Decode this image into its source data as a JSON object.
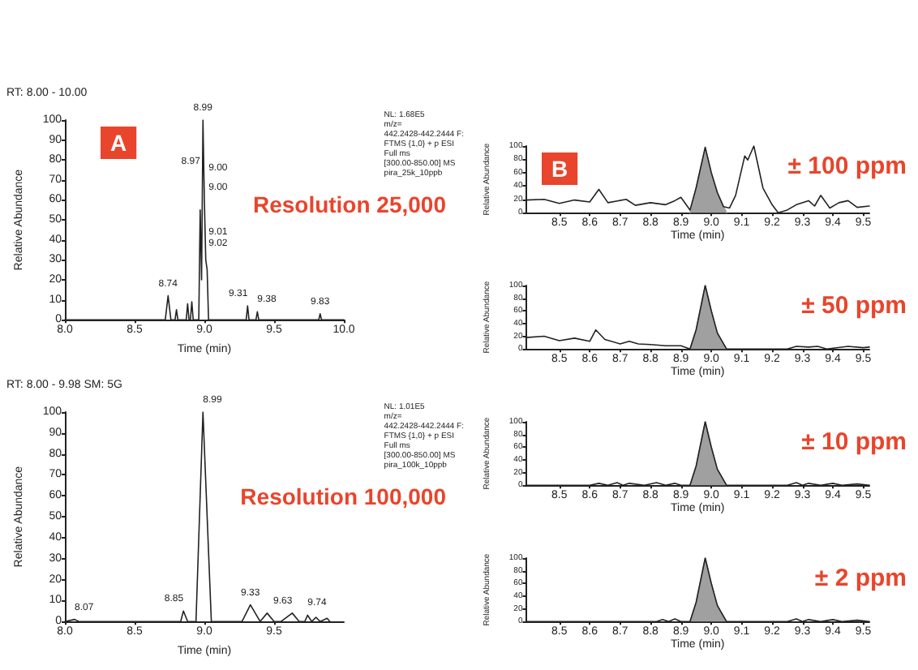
{
  "chart_data": [
    {
      "type": "line",
      "title": "Resolution 25,000",
      "subtitle": "A",
      "xlabel": "Time (min)",
      "ylabel": "Relative Abundance",
      "xlim": [
        8,
        10
      ],
      "xticks": [
        {
          "value": 8,
          "label": "8.0"
        },
        {
          "value": 8.5,
          "label": "8.5"
        },
        {
          "value": 9,
          "label": "9.0"
        },
        {
          "value": 9.5,
          "label": "9.5"
        },
        {
          "value": 10,
          "label": "10.0"
        }
      ],
      "ylim": [
        0,
        100
      ],
      "yticks": [
        0,
        10,
        20,
        30,
        40,
        50,
        60,
        70,
        80,
        90,
        100
      ],
      "series": [
        {
          "color": "#222222",
          "x": [
            8,
            8.72,
            8.74,
            8.76,
            8.79,
            8.8,
            8.81,
            8.87,
            8.88,
            8.89,
            8.9,
            8.91,
            8.92,
            8.96,
            8.97,
            8.98,
            8.99,
            9,
            9.01,
            9.02,
            9.03,
            9.3,
            9.31,
            9.32,
            9.37,
            9.38,
            9.39,
            9.82,
            9.83,
            9.84,
            10
          ],
          "values": [
            0,
            0,
            12,
            0,
            0,
            5,
            0,
            0,
            8,
            0,
            0,
            9,
            0,
            0,
            55,
            20,
            100,
            60,
            30,
            25,
            0,
            0,
            7,
            0,
            0,
            4,
            0,
            0,
            3,
            0,
            0
          ]
        }
      ],
      "annotations": [
        "RT: 8.00 - 10.00",
        "NL: 1.68E5\nm/z=\n442.2428-442.2444 F:\nFTMS {1,0} + p ESI\nFull ms\n[300.00-850.00] MS\npira_25k_10ppb",
        {
          "text": "8.99",
          "x": 8.99,
          "y": 100
        },
        {
          "text": "8.97",
          "x": 8.97,
          "y": 73
        },
        {
          "text": "9.00",
          "x": 9.03,
          "y": 70
        },
        {
          "text": "9.00",
          "x": 9.03,
          "y": 60
        },
        {
          "text": "9.01",
          "x": 9.03,
          "y": 38
        },
        {
          "text": "9.02",
          "x": 9.03,
          "y": 32
        },
        {
          "text": "8.74",
          "x": 8.74,
          "y": 12
        },
        {
          "text": "9.31",
          "x": 9.31,
          "y": 7
        },
        {
          "text": "9.38",
          "x": 9.38,
          "y": 4
        },
        {
          "text": "9.83",
          "x": 9.83,
          "y": 3
        }
      ]
    },
    {
      "type": "line",
      "title": "Resolution 100,000",
      "xlabel": "Time (min)",
      "ylabel": "Relative Abundance",
      "xlim": [
        8,
        10
      ],
      "xticks": [
        {
          "value": 8,
          "label": "8.0"
        },
        {
          "value": 8.5,
          "label": "8.5"
        },
        {
          "value": 9,
          "label": "9.0"
        },
        {
          "value": 9.5,
          "label": "9.5"
        }
      ],
      "ylim": [
        0,
        100
      ],
      "yticks": [
        0,
        10,
        20,
        30,
        40,
        50,
        60,
        70,
        80,
        90,
        100
      ],
      "series": [
        {
          "color": "#222222",
          "x": [
            8,
            8.07,
            8.1,
            8.83,
            8.85,
            8.88,
            8.94,
            8.99,
            9.05,
            9.27,
            9.33,
            9.4,
            9.45,
            9.5,
            9.55,
            9.63,
            9.68,
            9.72,
            9.74,
            9.77,
            9.8,
            9.83,
            9.88,
            9.9
          ],
          "values": [
            0,
            1,
            0,
            0,
            5,
            0,
            0,
            100,
            0,
            0,
            8,
            0,
            4,
            0,
            0,
            4,
            0,
            0,
            3,
            0,
            2,
            0,
            1.5,
            0
          ]
        }
      ],
      "annotations": [
        "RT: 8.00 - 9.98 SM: 5G",
        "NL: 1.01E5\nm/z=\n442.2428-442.2444 F:\nFTMS {1,0} + p ESI\nFull ms\n[300.00-850.00] MS\npira_100k_10ppb",
        {
          "text": "8.99",
          "x": 8.99,
          "y": 100
        },
        {
          "text": "8.07",
          "x": 8.07,
          "y": 1
        },
        {
          "text": "8.85",
          "x": 8.85,
          "y": 5
        },
        {
          "text": "9.33",
          "x": 9.33,
          "y": 8
        },
        {
          "text": "9.63",
          "x": 9.63,
          "y": 4
        },
        {
          "text": "9.74",
          "x": 9.74,
          "y": 3
        }
      ]
    },
    {
      "type": "line",
      "title": "± 100 ppm",
      "subtitle": "B",
      "xlabel": "Time (min)",
      "ylabel": "Relative Abundance",
      "xlim": [
        8.39,
        9.52
      ],
      "xticks": [
        8.5,
        8.6,
        8.7,
        8.8,
        8.9,
        {
          "value": 9,
          "label": "9.0"
        },
        9.1,
        9.2,
        9.3,
        9.4,
        9.5
      ],
      "ylim": [
        0,
        100
      ],
      "yticks": [
        0,
        20,
        40,
        60,
        80,
        100
      ],
      "series": [
        {
          "color": "#222222",
          "x": [
            8.39,
            8.45,
            8.5,
            8.55,
            8.6,
            8.63,
            8.66,
            8.72,
            8.75,
            8.8,
            8.85,
            8.88,
            8.9,
            8.93,
            8.95,
            8.98,
            9,
            9.02,
            9.04,
            9.06,
            9.08,
            9.11,
            9.12,
            9.14,
            9.17,
            9.2,
            9.22,
            9.25,
            9.28,
            9.32,
            9.34,
            9.36,
            9.39,
            9.42,
            9.45,
            9.48,
            9.52
          ],
          "values": [
            19,
            20,
            14,
            19,
            16,
            35,
            15,
            20,
            11,
            15,
            12,
            18,
            23,
            4,
            37,
            98,
            60,
            30,
            9,
            7,
            26,
            85,
            79,
            100,
            37,
            12,
            0,
            4,
            12,
            18,
            10,
            26,
            7,
            15,
            18,
            8,
            10
          ]
        },
        {
          "type": "area",
          "color": "#a0a0a0",
          "x": [
            8.93,
            8.95,
            8.98,
            9,
            9.02,
            9.05
          ],
          "values": [
            0,
            37,
            98,
            60,
            30,
            0
          ]
        }
      ]
    },
    {
      "type": "line",
      "title": "± 50 ppm",
      "xlabel": "Time (min)",
      "ylabel": "Relative Abundance",
      "xlim": [
        8.39,
        9.52
      ],
      "xticks": [
        8.5,
        8.6,
        8.7,
        8.8,
        8.9,
        {
          "value": 9,
          "label": "9.0"
        },
        9.1,
        9.2,
        9.3,
        9.4,
        9.5
      ],
      "ylim": [
        0,
        100
      ],
      "yticks": [
        0,
        20,
        40,
        60,
        80,
        100
      ],
      "series": [
        {
          "color": "#222222",
          "x": [
            8.39,
            8.45,
            8.5,
            8.55,
            8.6,
            8.62,
            8.65,
            8.7,
            8.73,
            8.76,
            8.8,
            8.85,
            8.9,
            8.93,
            8.95,
            8.98,
            9,
            9.02,
            9.05,
            9.25,
            9.28,
            9.32,
            9.35,
            9.38,
            9.45,
            9.5,
            9.52
          ],
          "values": [
            18,
            20,
            13,
            17,
            12,
            30,
            15,
            8,
            12,
            8,
            7,
            5,
            5,
            0,
            30,
            100,
            60,
            25,
            0,
            0,
            4,
            3,
            4,
            0,
            4,
            2,
            3
          ]
        },
        {
          "type": "area",
          "color": "#a0a0a0",
          "x": [
            8.93,
            8.95,
            8.98,
            9,
            9.02,
            9.05
          ],
          "values": [
            0,
            30,
            100,
            60,
            25,
            0
          ]
        }
      ]
    },
    {
      "type": "line",
      "title": "± 10 ppm",
      "xlabel": "Time (min)",
      "ylabel": "Relative Abundance",
      "xlim": [
        8.39,
        9.52
      ],
      "xticks": [
        8.5,
        8.6,
        8.7,
        8.8,
        8.9,
        {
          "value": 9,
          "label": "9.0"
        },
        9.1,
        9.2,
        9.3,
        9.4,
        9.5
      ],
      "ylim": [
        0,
        100
      ],
      "yticks": [
        0,
        20,
        40,
        60,
        80,
        100
      ],
      "series": [
        {
          "color": "#222222",
          "x": [
            8.39,
            8.6,
            8.63,
            8.66,
            8.69,
            8.71,
            8.73,
            8.78,
            8.82,
            8.85,
            8.88,
            8.9,
            8.93,
            8.95,
            8.98,
            9,
            9.02,
            9.05,
            9.25,
            9.28,
            9.3,
            9.32,
            9.36,
            9.4,
            9.43,
            9.48,
            9.52
          ],
          "values": [
            0,
            0,
            3,
            0,
            4,
            0,
            3,
            0,
            4,
            0,
            3,
            0,
            0,
            30,
            100,
            60,
            25,
            0,
            0,
            4,
            0,
            3,
            0,
            3,
            0,
            2,
            0
          ]
        },
        {
          "type": "area",
          "color": "#a0a0a0",
          "x": [
            8.93,
            8.95,
            8.98,
            9,
            9.02,
            9.05
          ],
          "values": [
            0,
            30,
            100,
            60,
            25,
            0
          ]
        }
      ]
    },
    {
      "type": "line",
      "title": "± 2 ppm",
      "xlabel": "Time (min)",
      "ylabel": "Relative Abundance",
      "xlim": [
        8.39,
        9.52
      ],
      "xticks": [
        8.5,
        8.6,
        8.7,
        8.8,
        8.9,
        {
          "value": 9,
          "label": "9.0"
        },
        9.1,
        9.2,
        9.3,
        9.4,
        9.5
      ],
      "ylim": [
        0,
        100
      ],
      "yticks": [
        0,
        20,
        40,
        60,
        80,
        100
      ],
      "series": [
        {
          "color": "#222222",
          "x": [
            8.39,
            8.82,
            8.84,
            8.86,
            8.88,
            8.9,
            8.93,
            8.95,
            8.98,
            9,
            9.02,
            9.05,
            9.25,
            9.28,
            9.3,
            9.32,
            9.36,
            9.4,
            9.43,
            9.48,
            9.52
          ],
          "values": [
            0,
            0,
            3,
            0,
            4,
            0,
            0,
            30,
            100,
            60,
            25,
            0,
            0,
            4,
            0,
            3,
            0,
            3,
            0,
            2,
            0
          ]
        },
        {
          "type": "area",
          "color": "#a0a0a0",
          "x": [
            8.93,
            8.95,
            8.98,
            9,
            9.02,
            9.05
          ],
          "values": [
            0,
            30,
            100,
            60,
            25,
            0
          ]
        }
      ]
    }
  ]
}
